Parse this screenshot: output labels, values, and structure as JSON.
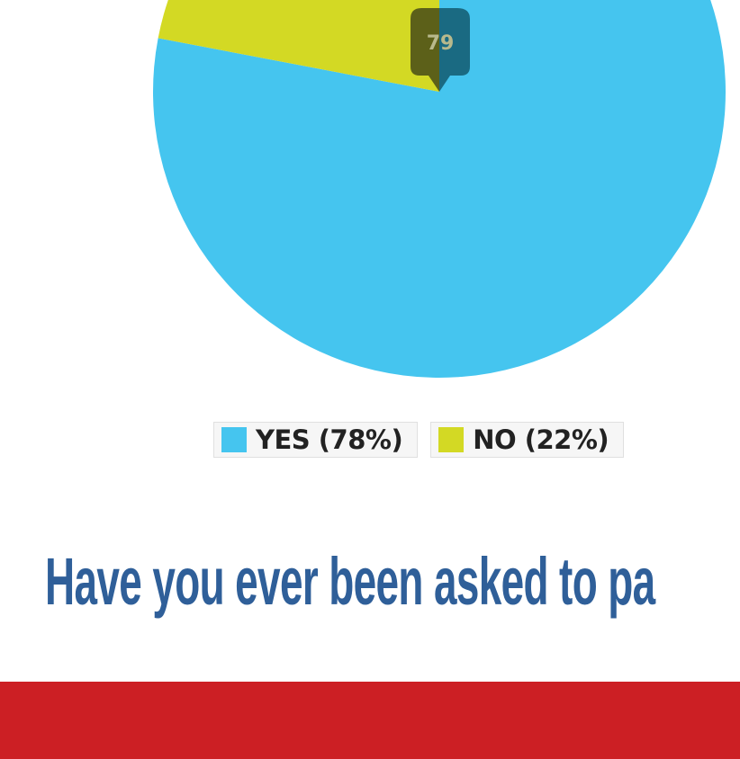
{
  "chart_data": {
    "type": "pie",
    "slices": [
      {
        "label": "YES (78%)",
        "value": 78,
        "color": "#45c5ef"
      },
      {
        "label": "NO (22%)",
        "value": 22,
        "color": "#d3d924"
      }
    ],
    "tooltip_value": "79"
  },
  "question": {
    "text": "Have you ever been asked to pa"
  },
  "footer": {
    "color": "#cc1f24"
  }
}
